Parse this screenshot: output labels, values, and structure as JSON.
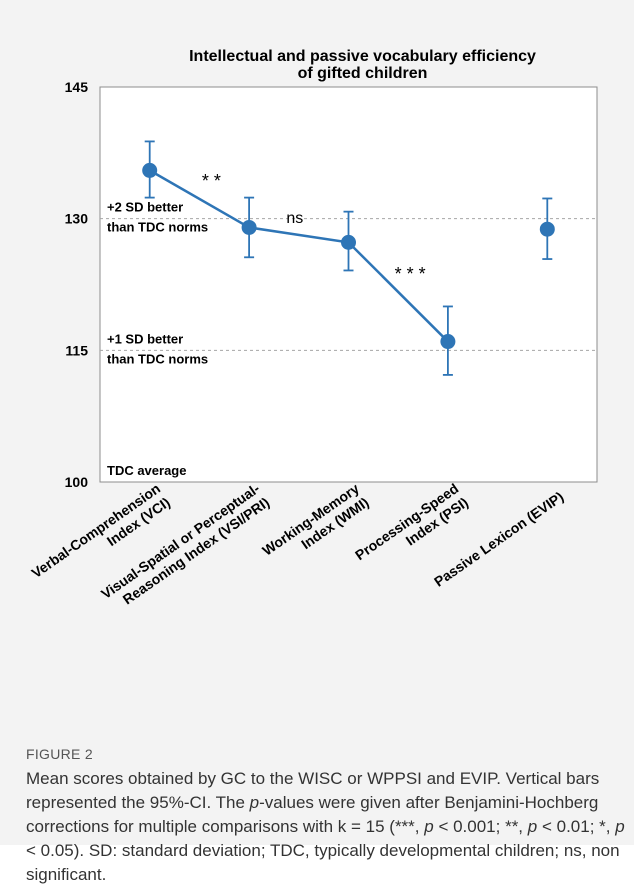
{
  "figure": {
    "label": "FIGURE 2",
    "caption_html": "Mean scores obtained by GC to the WISC or WPPSI and EVIP. Vertical bars represented the 95%-CI. The <i>p</i>-values were given after Benjamini-Hochberg corrections for multiple comparisons with k = 15 (***, <i>p</i> &lt; 0.001; **, <i>p</i> &lt; 0.01; *, <i>p</i> &lt; 0.05). SD: standard deviation; TDC, typically developmental children; ns, non significant."
  },
  "chart_data": {
    "type": "line",
    "title_lines": [
      "Intellectual and passive vocabulary efficiency",
      "of gifted children"
    ],
    "xlabel": "",
    "ylabel": "",
    "ylim": [
      100,
      145
    ],
    "yticks": [
      100,
      115,
      130,
      145
    ],
    "grid": false,
    "color": "#2e75b6",
    "categories": [
      [
        "Verbal-Comprehension",
        "Index (VCI)"
      ],
      [
        "Visual-Spatial or Perceptual-",
        "Reasoning Index (VSI/PRI)"
      ],
      [
        "Working-Memory",
        "Index (WMI)"
      ],
      [
        "Processing-Speed",
        "Index (PSI)"
      ],
      [
        "Passive Lexicon (EVIP)"
      ]
    ],
    "series": [
      {
        "values": [
          135.5,
          129,
          127.3,
          116,
          128.8
        ],
        "ci_low": [
          132.4,
          125.6,
          124.1,
          112.2,
          125.4
        ],
        "ci_high": [
          138.8,
          132.4,
          130.8,
          120,
          132.3
        ],
        "connected": [
          true,
          true,
          true,
          true,
          false
        ]
      }
    ],
    "reference_lines": [
      {
        "y": 130,
        "label": [
          "+2 SD better",
          "than TDC norms"
        ]
      },
      {
        "y": 115,
        "label": [
          "+1 SD better",
          "than TDC norms"
        ]
      },
      {
        "y": 100,
        "label": [
          "TDC average"
        ]
      }
    ],
    "annotations": [
      {
        "text": "* *",
        "between": [
          0,
          1
        ]
      },
      {
        "text": "ns",
        "between": [
          1,
          2
        ]
      },
      {
        "text": "* * *",
        "between": [
          2,
          3
        ]
      }
    ]
  }
}
